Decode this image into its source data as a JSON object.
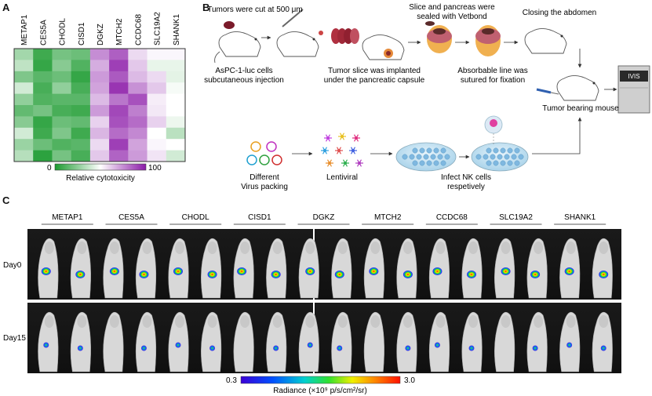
{
  "panel_labels": {
    "a": "A",
    "b": "B",
    "c": "C"
  },
  "chart_data": {
    "type": "heatmap",
    "columns": [
      "METAP1",
      "CES5A",
      "CHODL",
      "CISD1",
      "DGKZ",
      "MTCH2",
      "CCDC68",
      "SLC19A2",
      "SHANK1"
    ],
    "rows": 10,
    "values": [
      [
        30,
        8,
        20,
        18,
        75,
        85,
        58,
        52,
        52
      ],
      [
        36,
        6,
        24,
        12,
        68,
        92,
        62,
        45,
        45
      ],
      [
        22,
        14,
        18,
        6,
        72,
        86,
        65,
        58,
        44
      ],
      [
        40,
        10,
        26,
        10,
        70,
        94,
        74,
        62,
        48
      ],
      [
        26,
        12,
        14,
        14,
        65,
        80,
        88,
        54,
        50
      ],
      [
        16,
        20,
        10,
        8,
        72,
        90,
        78,
        55,
        50
      ],
      [
        24,
        6,
        18,
        16,
        60,
        88,
        82,
        60,
        46
      ],
      [
        40,
        8,
        22,
        8,
        66,
        82,
        76,
        50,
        35
      ],
      [
        28,
        18,
        12,
        14,
        58,
        92,
        70,
        52,
        50
      ],
      [
        34,
        4,
        20,
        10,
        62,
        84,
        72,
        56,
        40
      ]
    ],
    "colorbar": {
      "min_label": "0",
      "max_label": "100",
      "title": "Relative cytotoxicity"
    },
    "colors": {
      "low": "#1a9a2e",
      "mid": "#ffffff",
      "high": "#8b1aa8"
    }
  },
  "panel_b": {
    "steps": {
      "cut": "Tumors were cut at 500 μm",
      "seal": "Slice and pancreas were",
      "seal2": "sealed with Vetbond",
      "close": "Closing the abdomen",
      "cells": "AsPC-1-luc cells",
      "cells2": "subcutaneous injection",
      "implant": "Tumor slice was implanted",
      "implant2": "under the pancreatic capsule",
      "suture": "Absorbable line was",
      "suture2": "sutured for fixation",
      "bearing": "Tumor bearing mouse",
      "ivis": "IVIS",
      "virus": "Different",
      "virus2": "Virus packing",
      "lenti": "Lentiviral",
      "infect": "Infect NK cells",
      "infect2": "respetively"
    },
    "icons": [
      "mouse-icon",
      "scalpel-icon",
      "tumor-slices-icon",
      "pancreas-icon",
      "ivis-machine-icon",
      "plasmid-icon",
      "virus-icon",
      "petri-dish-icon",
      "nk-cell-icon",
      "syringe-icon"
    ]
  },
  "panel_c": {
    "groups": [
      "METAP1",
      "CES5A",
      "CHODL",
      "CISD1",
      "DGKZ",
      "MTCH2",
      "CCDC68",
      "SLC19A2",
      "SHANK1"
    ],
    "row_labels": [
      "Day0",
      "Day15"
    ],
    "colorbar": {
      "min_label": "0.3",
      "max_label": "3.0",
      "title": "Radiance (×10⁹ p/s/cm²/sr)"
    }
  }
}
